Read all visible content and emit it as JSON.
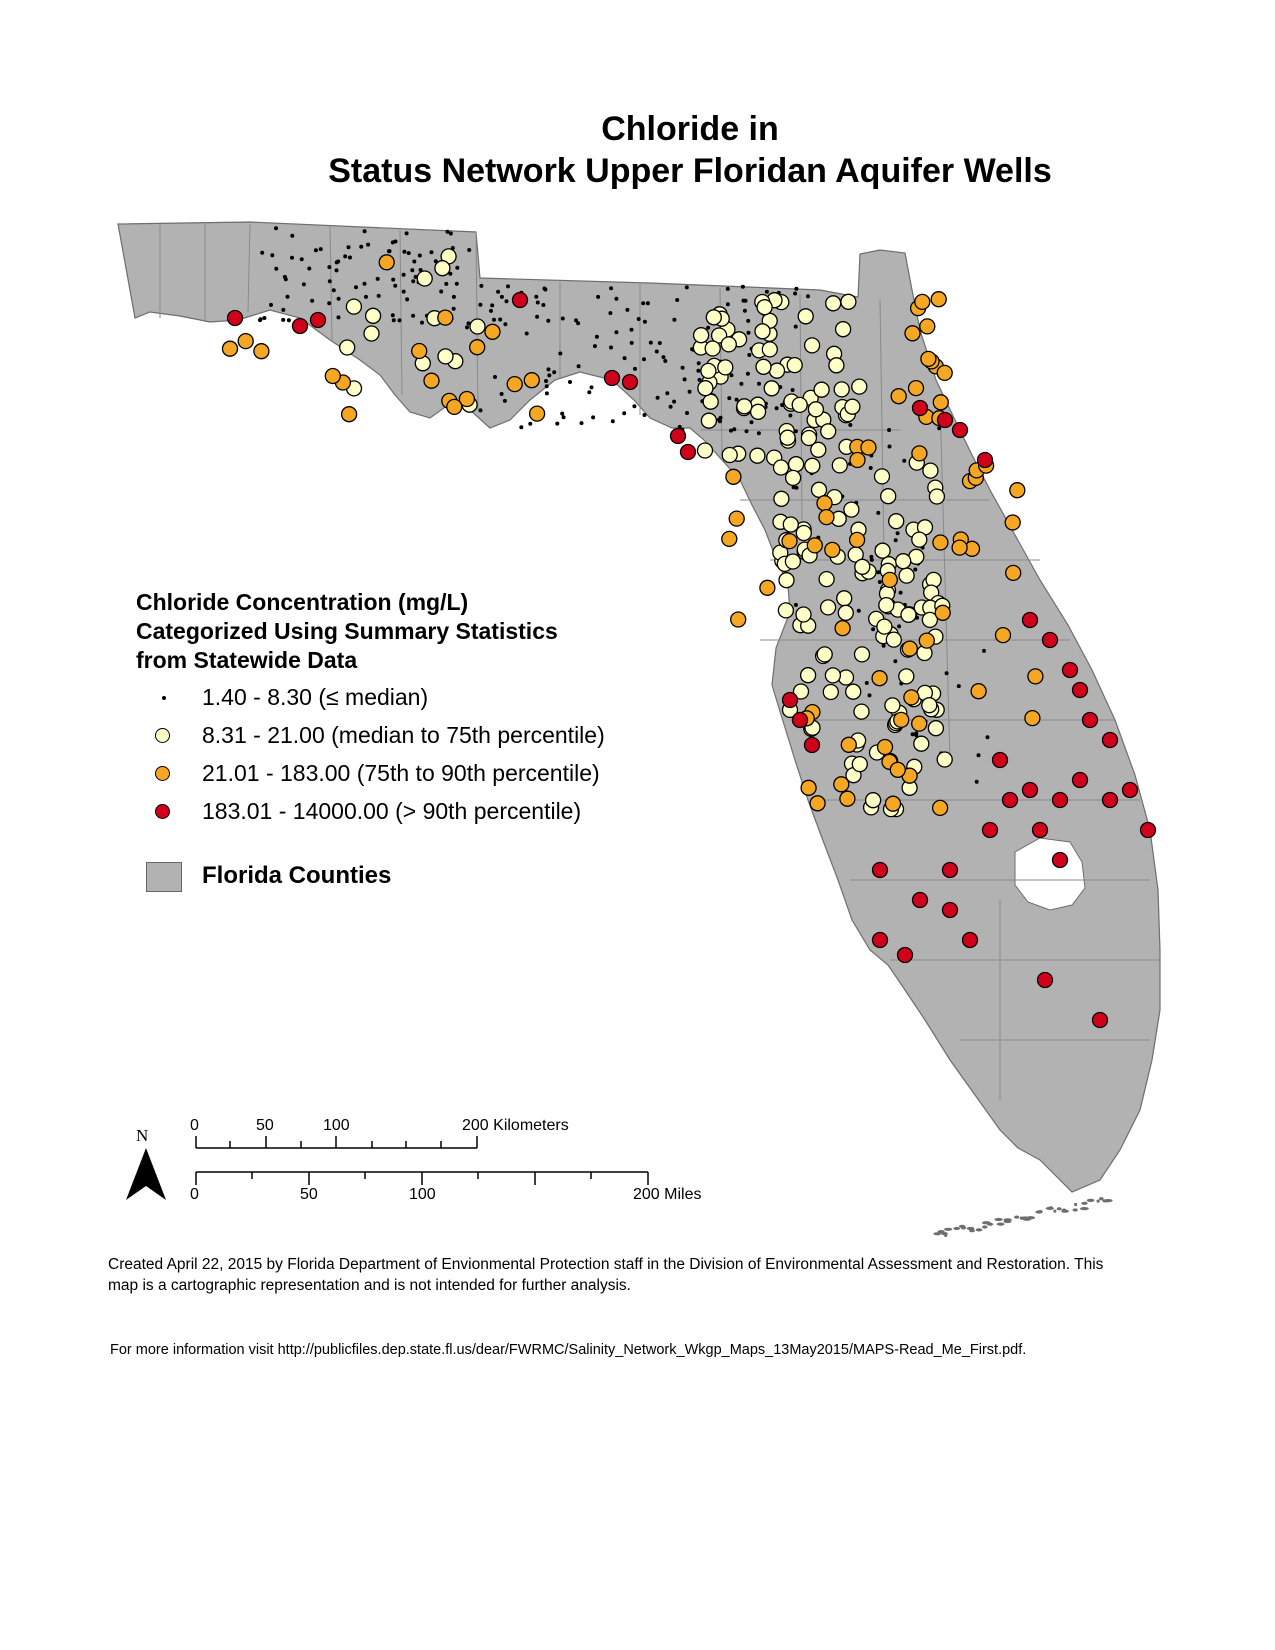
{
  "title_line1": "Chloride in",
  "title_line2": "Status Network Upper Floridan Aquifer Wells",
  "legend": {
    "heading_lines": [
      "Chloride Concentration (mg/L)",
      "Categorized Using Summary Statistics",
      "from Statewide Data"
    ],
    "classes": [
      {
        "label": "1.40 - 8.30 (≤ median)",
        "color": "#000000",
        "symbol": "small-dot"
      },
      {
        "label": "8.31 - 21.00 (median to 75th percentile)",
        "color": "#ffffc8",
        "symbol": "circle"
      },
      {
        "label": "21.01 - 183.00 (75th to 90th percentile)",
        "color": "#f5a623",
        "symbol": "circle"
      },
      {
        "label": "183.01 - 14000.00 (> 90th percentile)",
        "color": "#d0021b",
        "symbol": "circle"
      }
    ],
    "counties_label": "Florida Counties",
    "counties_color": "#b2b2b2"
  },
  "scale_bar": {
    "north_label": "N",
    "km_ticks": [
      "0",
      "50",
      "100"
    ],
    "km_end_label": "200 Kilometers",
    "mile_ticks": [
      "0",
      "50",
      "100"
    ],
    "mile_end_label": "200 Miles"
  },
  "credit_text": "Created April 22, 2015 by Florida Department of Envionmental Protection staff in the Division of Environmental Assessment and Restoration.  This map is a cartographic representation and is not intended for further analysis.",
  "info_text": "For more information visit http://publicfiles.dep.state.fl.us/dear/FWRMC/Salinity_Network_Wkgp_Maps_13May2015/MAPS-Read_Me_First.pdf.",
  "colors": {
    "land": "#b2b2b2",
    "county_line": "#8a8a8a",
    "low": "#000000",
    "mid": "#ffffc8",
    "high": "#f5a623",
    "very_high": "#d0021b"
  }
}
